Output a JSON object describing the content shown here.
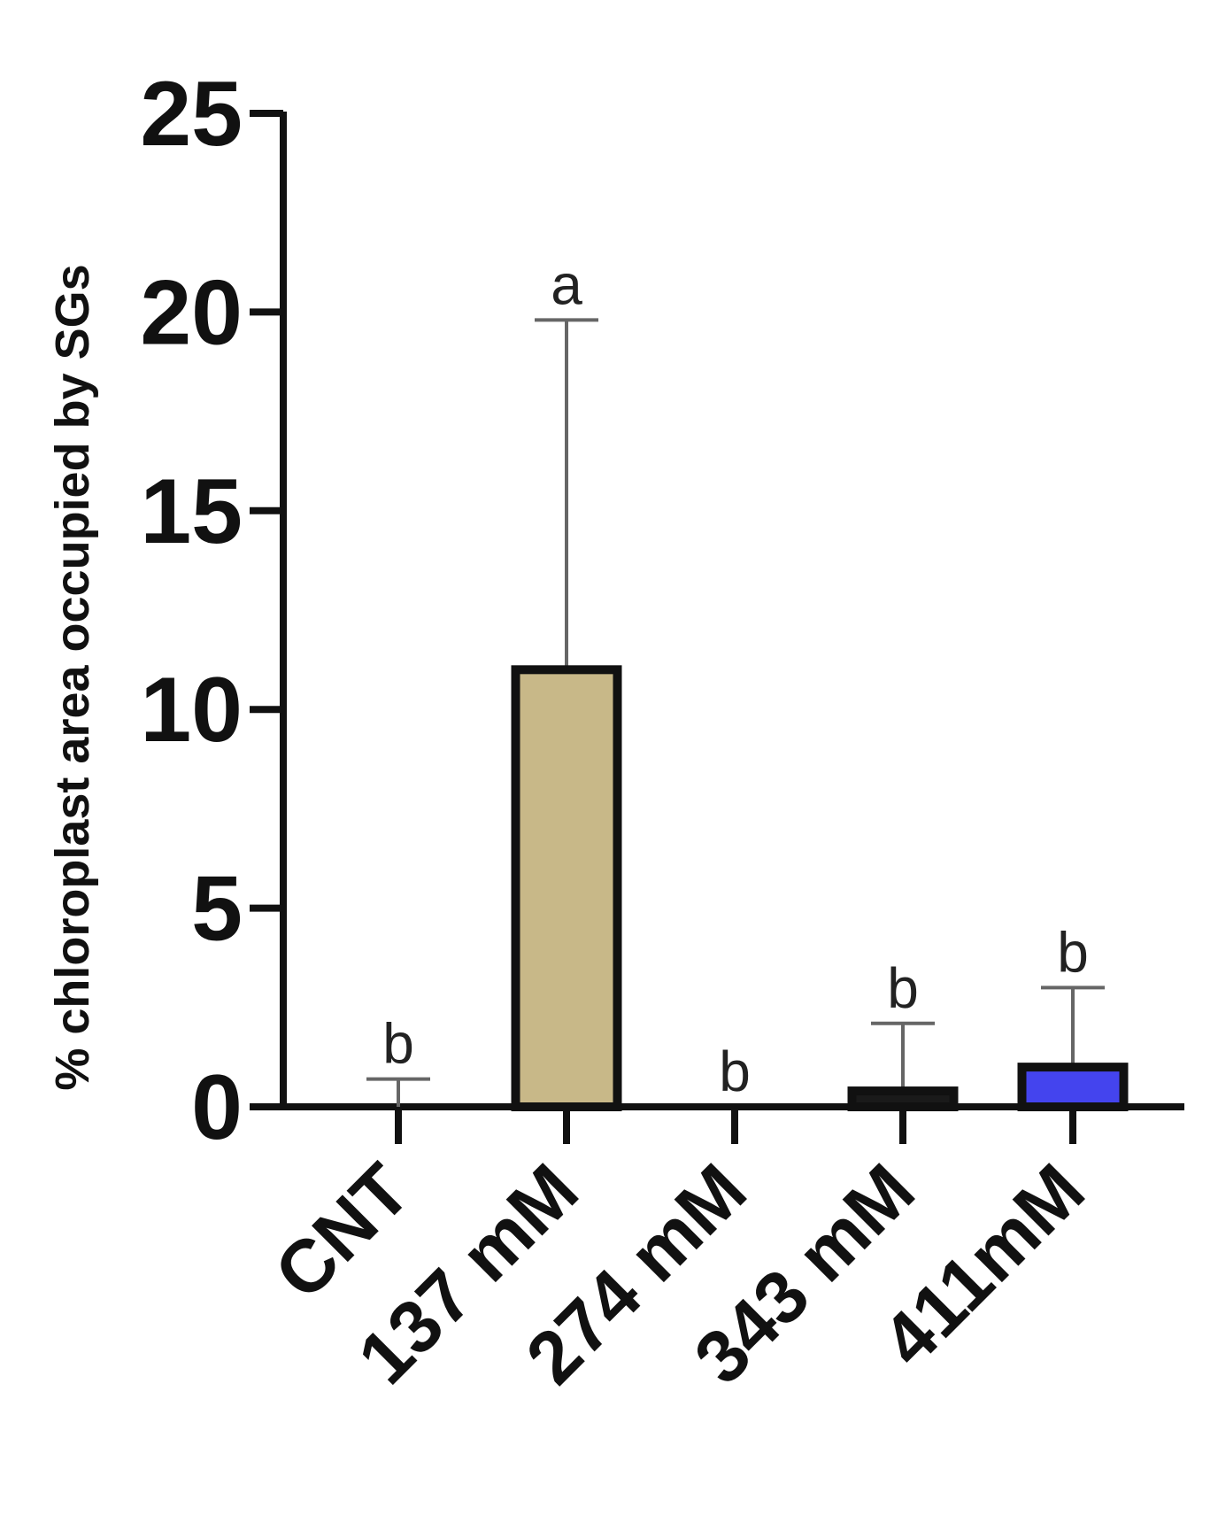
{
  "chart_data": {
    "type": "bar",
    "title": "",
    "xlabel": "",
    "ylabel": "% chloroplast area occupied by SGs",
    "ylim": [
      0,
      25
    ],
    "yticks": [
      0,
      5,
      10,
      15,
      20,
      25
    ],
    "ytick_labels": [
      "0",
      "5",
      "10",
      "15",
      "20",
      "25"
    ],
    "categories": [
      "CNT",
      "137 mM",
      "274 mM",
      "343 mM",
      "411mM"
    ],
    "values": [
      0,
      11,
      0,
      0.4,
      1.0
    ],
    "error_upper": [
      0.7,
      19.8,
      0,
      2.1,
      3.0
    ],
    "significance_letters": [
      "b",
      "a",
      "b",
      "b",
      "b"
    ],
    "bar_colors": [
      "#ffffff",
      "#c8b888",
      "#ffffff",
      "#1a1a1a",
      "#4444ee"
    ],
    "grid": false
  }
}
